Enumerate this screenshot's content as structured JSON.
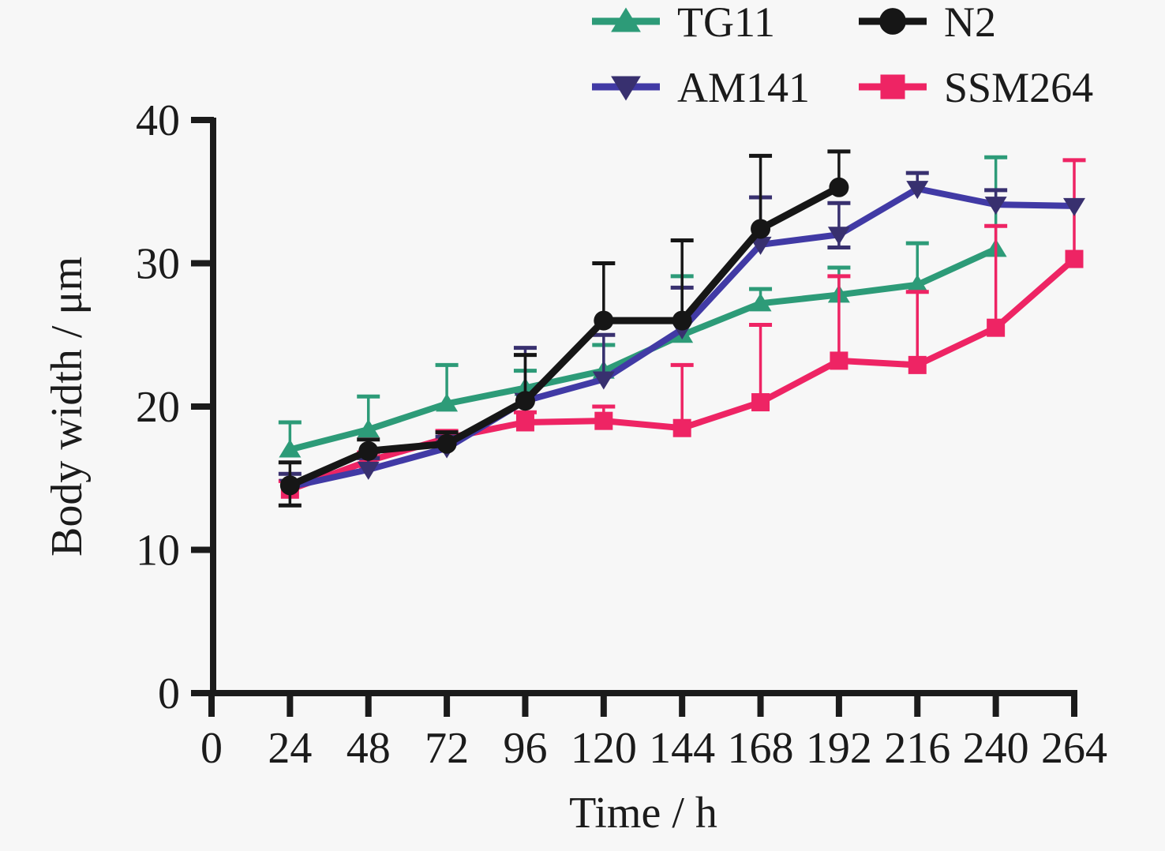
{
  "figure": {
    "background": "#f7f7f7",
    "text_color": "#1b1b1b",
    "axis_color": "#1b1b1b"
  },
  "chart_data": {
    "type": "line",
    "title": "",
    "xlabel": "Time / h",
    "ylabel": "Body width / μm",
    "x_ticks": [
      0,
      24,
      48,
      72,
      96,
      120,
      144,
      168,
      192,
      216,
      240,
      264
    ],
    "y_ticks": [
      0,
      10,
      20,
      30,
      40
    ],
    "xlim": [
      0,
      264
    ],
    "ylim": [
      0,
      40
    ],
    "grid": false,
    "legend_position": "top-right",
    "legend_rows": [
      [
        "TG11",
        "N2"
      ],
      [
        "AM141",
        "SSM264"
      ]
    ],
    "series": [
      {
        "name": "TG11",
        "color": "#2d9b78",
        "marker": "triangle-up",
        "x": [
          24,
          48,
          72,
          96,
          120,
          144,
          168,
          192,
          216,
          240
        ],
        "y": [
          17.0,
          18.4,
          20.2,
          21.3,
          22.5,
          25.0,
          27.2,
          27.8,
          28.5,
          31.0
        ],
        "err_up": [
          1.9,
          2.3,
          2.7,
          1.2,
          1.8,
          4.1,
          1.0,
          1.9,
          2.9,
          6.4
        ],
        "err_down": [
          0,
          0,
          0,
          0,
          0,
          0,
          0,
          0,
          0,
          0
        ]
      },
      {
        "name": "N2",
        "color": "#161616",
        "marker": "circle",
        "x": [
          24,
          48,
          72,
          96,
          120,
          144,
          168,
          192
        ],
        "y": [
          14.5,
          16.9,
          17.4,
          20.4,
          26.0,
          26.0,
          32.4,
          35.3
        ],
        "err_up": [
          1.6,
          0.8,
          0.8,
          3.2,
          4.0,
          5.6,
          5.1,
          2.5
        ],
        "err_down": [
          1.4,
          0,
          0,
          0,
          0,
          0,
          0,
          0
        ]
      },
      {
        "name": "AM141",
        "color": "#413aa5",
        "marker_color": "#38306f",
        "marker": "triangle-down",
        "x": [
          24,
          48,
          72,
          96,
          120,
          144,
          168,
          192,
          216,
          240,
          264
        ],
        "y": [
          14.4,
          15.6,
          17.1,
          20.4,
          21.9,
          25.4,
          31.3,
          32.0,
          35.2,
          34.1,
          34.0
        ],
        "err_up": [
          0.9,
          0.8,
          0.8,
          3.7,
          3.1,
          2.9,
          3.3,
          2.2,
          1.1,
          1.0,
          0
        ],
        "err_down": [
          0,
          0,
          0,
          0,
          0,
          0,
          0,
          0.9,
          0,
          0,
          0
        ]
      },
      {
        "name": "SSM264",
        "color": "#ee2464",
        "marker": "square",
        "x": [
          24,
          48,
          72,
          96,
          120,
          144,
          168,
          192,
          216,
          240,
          264
        ],
        "y": [
          14.2,
          16.2,
          17.8,
          18.9,
          19.0,
          18.5,
          20.3,
          23.2,
          22.9,
          25.5,
          30.3
        ],
        "err_up": [
          0.6,
          0.6,
          0.5,
          0.7,
          1.0,
          4.4,
          5.4,
          5.9,
          5.1,
          7.1,
          6.9
        ],
        "err_down": [
          0,
          0,
          0,
          0,
          0,
          0,
          0,
          0,
          0,
          0,
          0
        ]
      }
    ]
  }
}
